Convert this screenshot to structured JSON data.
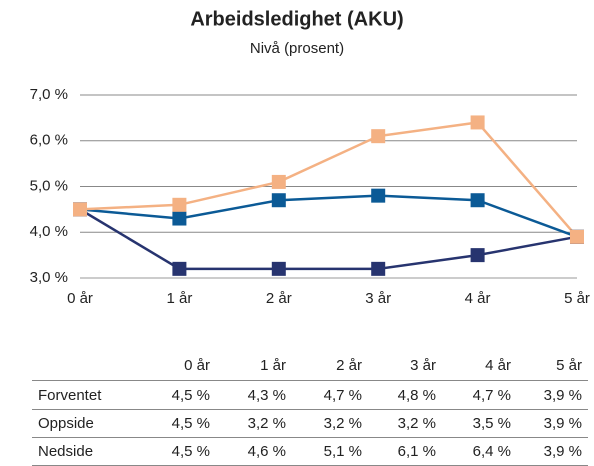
{
  "chart_data": {
    "type": "line",
    "title": "Arbeidsledighet (AKU)",
    "subtitle": "Nivå (prosent)",
    "categories": [
      "0 år",
      "1 år",
      "2 år",
      "3 år",
      "4 år",
      "5 år"
    ],
    "series": [
      {
        "name": "Forventet",
        "color": "#0b5a96",
        "values": [
          4.5,
          4.3,
          4.7,
          4.8,
          4.7,
          3.9
        ],
        "value_labels": [
          "4,5 %",
          "4,3 %",
          "4,7 %",
          "4,8 %",
          "4,7 %",
          "3,9 %"
        ]
      },
      {
        "name": "Oppside",
        "color": "#27346f",
        "values": [
          4.5,
          3.2,
          3.2,
          3.2,
          3.5,
          3.9
        ],
        "value_labels": [
          "4,5 %",
          "3,2 %",
          "3,2 %",
          "3,2 %",
          "3,5 %",
          "3,9 %"
        ]
      },
      {
        "name": "Nedside",
        "color": "#f4b183",
        "values": [
          4.5,
          4.6,
          5.1,
          6.1,
          6.4,
          3.9
        ],
        "value_labels": [
          "4,5 %",
          "4,6 %",
          "5,1 %",
          "6,1 %",
          "6,4 %",
          "3,9 %"
        ]
      }
    ],
    "ylim": [
      3,
      7
    ],
    "yticks": [
      {
        "value": 3,
        "label": "3,0 %"
      },
      {
        "value": 4,
        "label": "4,0 %"
      },
      {
        "value": 5,
        "label": "5,0 %"
      },
      {
        "value": 6,
        "label": "6,0 %"
      },
      {
        "value": 7,
        "label": "7,0 %"
      }
    ],
    "grid": true
  }
}
